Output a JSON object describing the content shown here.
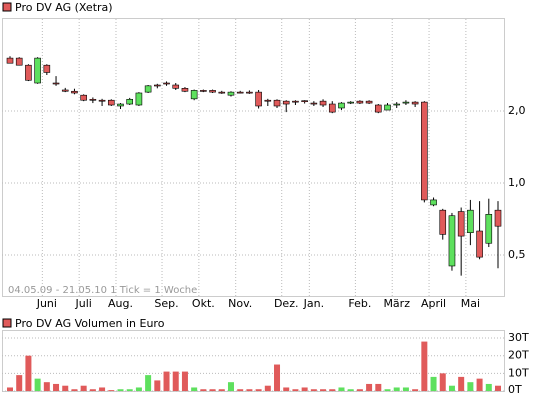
{
  "chart_data": [
    {
      "type": "candlestick",
      "title": "Pro DV AG (Xetra)",
      "annotation": "04.05.09 - 21.05.10   1 Tick = 1 Woche",
      "categories": [
        null,
        null,
        null,
        null,
        "Juni",
        null,
        null,
        null,
        "Juli",
        null,
        null,
        null,
        "Aug.",
        null,
        null,
        null,
        null,
        "Sep.",
        null,
        null,
        null,
        "Okt.",
        null,
        null,
        null,
        "Nov.",
        null,
        null,
        null,
        null,
        "Dez.",
        null,
        null,
        "Jan.",
        null,
        null,
        null,
        null,
        "Feb.",
        null,
        null,
        null,
        "März",
        null,
        null,
        null,
        "April",
        null,
        null,
        null,
        "Mai",
        null,
        null,
        null
      ],
      "open": [
        3.33,
        3.33,
        3.11,
        2.62,
        3.11,
        2.62,
        2.45,
        2.42,
        2.33,
        2.24,
        2.22,
        2.22,
        2.1,
        2.14,
        2.12,
        2.4,
        2.57,
        2.62,
        2.57,
        2.49,
        2.25,
        2.44,
        2.44,
        2.4,
        2.33,
        2.4,
        2.4,
        2.4,
        2.22,
        2.22,
        2.2,
        2.2,
        2.21,
        2.16,
        2.2,
        2.14,
        2.06,
        2.16,
        2.2,
        2.2,
        2.12,
        2.02,
        2.14,
        2.16,
        2.18,
        2.18,
        0.81,
        0.77,
        0.45,
        0.76,
        0.62,
        0.63,
        0.56,
        0.77
      ],
      "high": [
        3.39,
        3.36,
        3.14,
        3.36,
        3.14,
        2.8,
        2.5,
        2.48,
        2.35,
        2.28,
        2.25,
        2.24,
        2.16,
        2.27,
        2.4,
        2.57,
        2.6,
        2.66,
        2.62,
        2.52,
        2.46,
        2.46,
        2.46,
        2.43,
        2.42,
        2.43,
        2.44,
        2.45,
        2.25,
        2.24,
        2.22,
        2.22,
        2.22,
        2.2,
        2.24,
        2.2,
        2.18,
        2.2,
        2.22,
        2.22,
        2.14,
        2.16,
        2.18,
        2.22,
        2.2,
        2.2,
        0.87,
        0.78,
        0.75,
        0.79,
        0.85,
        0.84,
        0.86,
        0.84
      ],
      "low": [
        3.17,
        3.1,
        2.67,
        2.6,
        2.83,
        2.55,
        2.4,
        2.35,
        2.2,
        2.16,
        2.1,
        2.1,
        2.04,
        2.12,
        2.1,
        2.38,
        2.49,
        2.55,
        2.45,
        2.4,
        2.22,
        2.4,
        2.38,
        2.36,
        2.3,
        2.37,
        2.36,
        2.05,
        2.1,
        2.06,
        1.98,
        2.12,
        2.15,
        2.1,
        2.08,
        1.96,
        2.02,
        2.14,
        2.14,
        2.14,
        1.96,
        2.02,
        2.06,
        2.12,
        2.08,
        0.83,
        0.8,
        0.58,
        0.43,
        0.41,
        0.55,
        0.48,
        0.54,
        0.44
      ],
      "close": [
        3.17,
        3.11,
        2.69,
        3.33,
        2.9,
        2.6,
        2.42,
        2.38,
        2.22,
        2.22,
        2.2,
        2.12,
        2.14,
        2.24,
        2.38,
        2.55,
        2.55,
        2.6,
        2.49,
        2.42,
        2.44,
        2.43,
        2.4,
        2.39,
        2.4,
        2.39,
        2.39,
        2.1,
        2.2,
        2.1,
        2.14,
        2.18,
        2.19,
        2.14,
        2.12,
        1.98,
        2.16,
        2.18,
        2.16,
        2.16,
        1.98,
        2.12,
        2.14,
        2.18,
        2.14,
        0.85,
        0.85,
        0.61,
        0.73,
        0.6,
        0.77,
        0.49,
        0.74,
        0.66
      ],
      "up_color": "#5ee05e",
      "down_color": "#e05a5a",
      "ylim": [
        0.337,
        4.9
      ],
      "log_scale": true,
      "grid": true,
      "yticks": [
        {
          "value": 2,
          "label": "2,0"
        },
        {
          "value": 1,
          "label": "1,0"
        },
        {
          "value": 0.5,
          "label": "0,5"
        }
      ]
    },
    {
      "type": "bar",
      "title": "Pro DV AG Volumen in Euro",
      "values": [
        2,
        9,
        20,
        7,
        5,
        4,
        3,
        1,
        3,
        1,
        2,
        0.5,
        1,
        1,
        2,
        9,
        6,
        11,
        11,
        11,
        2,
        1,
        1,
        1,
        5,
        1,
        1,
        1,
        3,
        15,
        2,
        1,
        2,
        1,
        1,
        1,
        2,
        1,
        1,
        4,
        4,
        1,
        2,
        2,
        1,
        28,
        8,
        10,
        3,
        8,
        5,
        7,
        4,
        3
      ],
      "ylim": [
        0,
        34
      ],
      "grid": true,
      "yticks": [
        {
          "value": 30,
          "label": "30T"
        },
        {
          "value": 20,
          "label": "20T"
        },
        {
          "value": 10,
          "label": "10T"
        },
        {
          "value": 0,
          "label": "0T"
        }
      ]
    }
  ]
}
